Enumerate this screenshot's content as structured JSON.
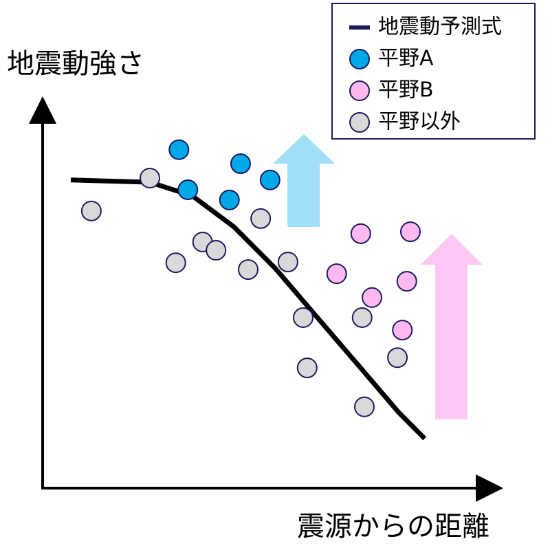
{
  "chart_data": {
    "type": "scatter",
    "x_label": "震源からの距離",
    "y_label": "地震動強さ",
    "xlim": [
      0,
      100
    ],
    "ylim": [
      0,
      100
    ],
    "legend": "upper right",
    "series": [
      {
        "name": "地震動予測式",
        "type": "line",
        "color": "#000000",
        "x": [
          6.3,
          24.0,
          33.5,
          42.8,
          52.0,
          61.2,
          70.5,
          79.7,
          85.5
        ],
        "y": [
          81.5,
          80.9,
          77.3,
          69.1,
          58.2,
          45.5,
          32.7,
          20.0,
          13.1
        ]
      },
      {
        "name": "平野A",
        "color": "#00a8e8",
        "x": [
          30.5,
          44.3,
          50.9,
          32.5,
          41.8
        ],
        "y": [
          89.5,
          85.8,
          81.5,
          78.9,
          76.2
        ]
      },
      {
        "name": "平野B",
        "color": "#ffb8f0",
        "x": [
          71.2,
          82.3,
          65.8,
          81.5,
          73.7,
          80.5
        ],
        "y": [
          67.3,
          67.8,
          56.7,
          54.7,
          50.4,
          41.8
        ]
      },
      {
        "name": "平野以外",
        "color": "#d9d9d9",
        "x": [
          10.9,
          24.0,
          48.8,
          35.8,
          38.8,
          29.8,
          46.0,
          54.9,
          58.3,
          71.5,
          79.4,
          59.2,
          72.0
        ],
        "y": [
          73.3,
          82.0,
          71.3,
          65.1,
          62.9,
          59.6,
          57.8,
          59.8,
          45.1,
          45.1,
          34.5,
          31.8,
          21.5
        ]
      }
    ]
  }
}
